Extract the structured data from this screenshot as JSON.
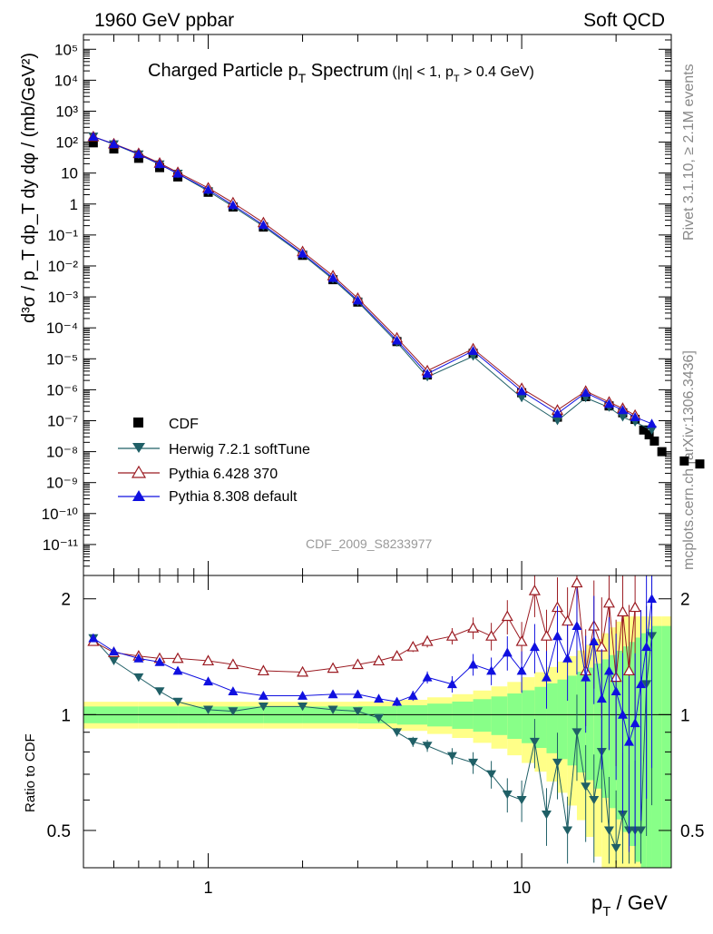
{
  "header": {
    "left": "1960 GeV ppbar",
    "right": "Soft QCD"
  },
  "side_labels": {
    "top": "Rivet 3.1.10, ≥ 2.1M events",
    "bottom": "mcplots.cern.ch [arXiv:1306.3436]"
  },
  "colors": {
    "cdf": "#000000",
    "herwig": "#1f5f66",
    "pythia6": "#9b1b22",
    "pythia8": "#1010e0",
    "band_inner": "#88ff88",
    "band_outer": "#ffff88"
  },
  "chart_data": [
    {
      "type": "scatter",
      "title": "Charged Particle p_T Spectrum",
      "title_main": "Charged Particle p",
      "title_sub": "T",
      "title_tail": " Spectrum",
      "title_cut": "(|η| < 1, p",
      "title_cut_sub": "T",
      "title_cut_tail": " > 0.4 GeV)",
      "watermark": "CDF_2009_S8233977",
      "ylabel": "d³σ / p_T dp_T dy dφ / (mb/GeV²)",
      "xscale": "log",
      "yscale": "log",
      "xlim": [
        0.4,
        30
      ],
      "ylim": [
        1e-12,
        300000.0
      ],
      "ytick_labels": [
        "10⁻¹¹",
        "10⁻¹⁰",
        "10⁻⁹",
        "10⁻⁸",
        "10⁻⁷",
        "10⁻⁶",
        "10⁻⁵",
        "10⁻⁴",
        "10⁻³",
        "10⁻²",
        "10⁻¹",
        "1",
        "10",
        "10²",
        "10³",
        "10⁴",
        "10⁵"
      ],
      "legend_position": "lower-left",
      "series": [
        {
          "name": "CDF",
          "marker": "square",
          "x": [
            0.43,
            0.5,
            0.6,
            0.7,
            0.8,
            1.0,
            1.2,
            1.5,
            2.0,
            2.5,
            3.0,
            4.0,
            5.0,
            7.0,
            10.0,
            13.0,
            16.0,
            19.0,
            21.0,
            23.0,
            24.5,
            25.5,
            26.5,
            28.0,
            33.0,
            37.0
          ],
          "y": [
            95,
            60,
            30,
            15,
            7.5,
            2.4,
            0.8,
            0.18,
            0.022,
            0.0036,
            0.00068,
            3.6e-05,
            3e-06,
            1.5e-05,
            8e-07,
            1.3e-07,
            6e-07,
            3e-07,
            1.8e-07,
            1.1e-07,
            5e-08,
            3.5e-08,
            2.2e-08,
            1e-08,
            5e-09,
            4e-09
          ]
        },
        {
          "name": "Herwig 7.2.1 softTune",
          "marker": "triangle-down",
          "x": [
            0.43,
            0.5,
            0.6,
            0.7,
            0.8,
            1.0,
            1.2,
            1.5,
            2.0,
            2.5,
            3.0,
            4.0,
            5.0,
            7.0,
            10.0,
            13.0,
            16.0,
            19.0,
            21.0,
            23.0,
            26.0
          ],
          "y": [
            150,
            85,
            40,
            19,
            9.5,
            2.6,
            0.83,
            0.19,
            0.023,
            0.0037,
            0.0007,
            3.4e-05,
            2.6e-06,
            1.2e-05,
            5.5e-07,
            1e-07,
            5.5e-07,
            2.7e-07,
            1.3e-07,
            9e-08,
            5e-08
          ]
        },
        {
          "name": "Pythia 6.428 370",
          "marker": "triangle-up-open",
          "x": [
            0.43,
            0.5,
            0.6,
            0.7,
            0.8,
            1.0,
            1.2,
            1.5,
            2.0,
            2.5,
            3.0,
            4.0,
            5.0,
            7.0,
            10.0,
            13.0,
            16.0,
            19.0,
            21.0,
            23.0
          ],
          "y": [
            150,
            88,
            43,
            21,
            10.5,
            3.3,
            1.1,
            0.25,
            0.029,
            0.0048,
            0.0009,
            4.7e-05,
            4.1e-06,
            2.1e-05,
            1.1e-06,
            2.2e-07,
            9e-07,
            4e-07,
            2.5e-07,
            1.5e-07
          ]
        },
        {
          "name": "Pythia 8.308 default",
          "marker": "triangle-up",
          "x": [
            0.43,
            0.5,
            0.6,
            0.7,
            0.8,
            1.0,
            1.2,
            1.5,
            2.0,
            2.5,
            3.0,
            4.0,
            5.0,
            7.0,
            10.0,
            13.0,
            16.0,
            19.0,
            21.0,
            23.0,
            26.0
          ],
          "y": [
            150,
            87,
            41,
            19.5,
            9.6,
            2.9,
            0.92,
            0.21,
            0.025,
            0.0041,
            0.00077,
            3.9e-05,
            3.3e-06,
            1.8e-05,
            9e-07,
            1.7e-07,
            8e-07,
            3.5e-07,
            2.2e-07,
            1.3e-07,
            8e-08
          ]
        }
      ]
    },
    {
      "type": "scatter",
      "xlabel": "p_T / GeV",
      "xlabel_main": "p",
      "xlabel_sub": "T",
      "xlabel_tail": " / GeV",
      "ylabel": "Ratio to CDF",
      "xscale": "log",
      "yscale": "log",
      "xlim": [
        0.4,
        30
      ],
      "ylim": [
        0.4,
        2.3
      ],
      "xtick_labels": [
        "1",
        "10"
      ],
      "ytick_labels": [
        "0.5",
        "1",
        "2"
      ],
      "reference_line": 1,
      "series": [
        {
          "name": "Herwig 7.2.1 softTune",
          "marker": "triangle-down",
          "x": [
            0.43,
            0.5,
            0.6,
            0.7,
            0.8,
            1.0,
            1.2,
            1.5,
            2.0,
            2.5,
            3.0,
            3.5,
            4.0,
            4.5,
            5.0,
            6.0,
            7.0,
            8.0,
            9.0,
            10.0,
            11.0,
            12.0,
            13.0,
            14.0,
            15.0,
            16.0,
            17.0,
            18.0,
            19.0,
            20.0,
            21.0,
            22.0,
            23.0,
            24.0,
            25.0,
            26.0
          ],
          "y": [
            1.58,
            1.38,
            1.25,
            1.15,
            1.08,
            1.03,
            1.02,
            1.05,
            1.05,
            1.03,
            1.02,
            0.98,
            0.9,
            0.85,
            0.83,
            0.78,
            0.75,
            0.7,
            0.62,
            0.6,
            0.85,
            0.55,
            0.75,
            0.5,
            0.9,
            0.65,
            0.6,
            0.8,
            0.5,
            0.45,
            0.55,
            0.5,
            0.5,
            0.5,
            1.2,
            1.6
          ]
        },
        {
          "name": "Pythia 6.428 370",
          "marker": "triangle-up-open",
          "x": [
            0.43,
            0.5,
            0.6,
            0.7,
            0.8,
            1.0,
            1.2,
            1.5,
            2.0,
            2.5,
            3.0,
            3.5,
            4.0,
            4.5,
            5.0,
            6.0,
            7.0,
            8.0,
            9.0,
            10.0,
            11.0,
            12.0,
            13.0,
            14.0,
            15.0,
            16.0,
            17.0,
            18.0,
            19.0,
            20.0,
            21.0,
            22.0,
            23.0
          ],
          "y": [
            1.55,
            1.45,
            1.42,
            1.4,
            1.4,
            1.38,
            1.35,
            1.3,
            1.29,
            1.32,
            1.35,
            1.38,
            1.42,
            1.5,
            1.55,
            1.6,
            1.68,
            1.6,
            1.8,
            1.55,
            2.1,
            1.6,
            1.9,
            1.75,
            2.2,
            1.3,
            1.7,
            1.5,
            1.95,
            1.25,
            1.85,
            1.3,
            1.9
          ]
        },
        {
          "name": "Pythia 8.308 default",
          "marker": "triangle-up",
          "x": [
            0.43,
            0.5,
            0.6,
            0.7,
            0.8,
            1.0,
            1.2,
            1.5,
            2.0,
            2.5,
            3.0,
            3.5,
            4.0,
            4.5,
            5.0,
            6.0,
            7.0,
            8.0,
            9.0,
            10.0,
            11.0,
            12.0,
            13.0,
            14.0,
            15.0,
            16.0,
            17.0,
            18.0,
            19.0,
            20.0,
            21.0,
            22.0,
            23.0,
            24.0,
            25.0,
            26.0
          ],
          "y": [
            1.58,
            1.46,
            1.4,
            1.37,
            1.3,
            1.22,
            1.15,
            1.12,
            1.12,
            1.13,
            1.13,
            1.1,
            1.08,
            1.12,
            1.25,
            1.2,
            1.35,
            1.3,
            1.45,
            1.3,
            1.5,
            1.25,
            1.6,
            1.4,
            1.7,
            1.25,
            1.55,
            1.1,
            1.3,
            1.15,
            1.0,
            0.85,
            0.95,
            1.2,
            1.5,
            2.0
          ]
        }
      ]
    }
  ]
}
